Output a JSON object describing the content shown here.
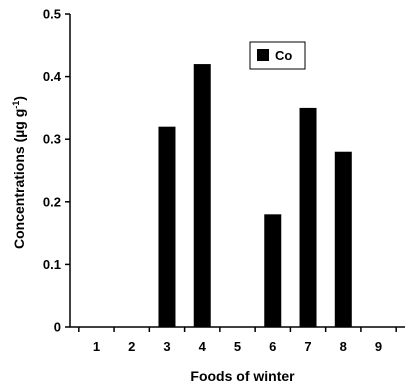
{
  "chart_data": {
    "type": "bar",
    "categories": [
      "1",
      "2",
      "3",
      "4",
      "5",
      "6",
      "7",
      "8",
      "9"
    ],
    "series": [
      {
        "name": "Co",
        "values": [
          0,
          0,
          0.32,
          0.42,
          0,
          0.18,
          0.35,
          0.28,
          0
        ],
        "color": "#000000"
      }
    ],
    "xlabel": "Foods of winter",
    "ylabel_main": "Concentrations (µg g",
    "ylabel_sup": "-1",
    "ylabel_close": ")",
    "ylim": [
      0,
      0.5
    ],
    "yticks": [
      "0",
      "0.1",
      "0.2",
      "0.3",
      "0.4",
      "0.5"
    ],
    "ytick_values": [
      0,
      0.1,
      0.2,
      0.3,
      0.4,
      0.5
    ],
    "grid": false,
    "legend_position": "top-right"
  }
}
